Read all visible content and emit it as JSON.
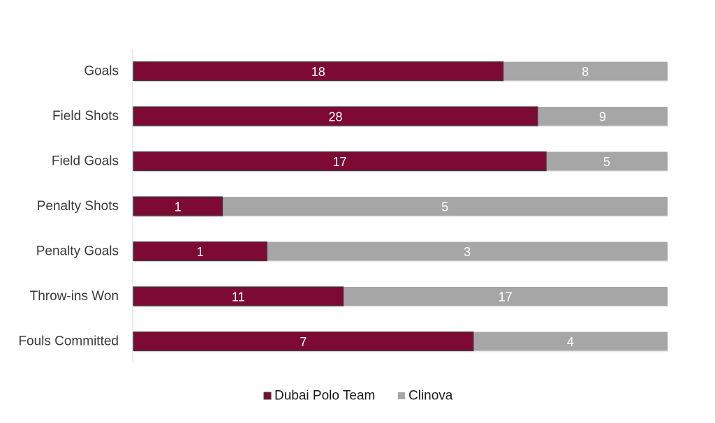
{
  "chart_data": {
    "type": "bar",
    "orientation": "horizontal",
    "stacking": "percent",
    "categories": [
      "Goals",
      "Field Shots",
      "Field Goals",
      "Penalty Shots",
      "Penalty Goals",
      "Throw-ins Won",
      "Fouls Committed"
    ],
    "series": [
      {
        "name": "Dubai Polo Team",
        "values": [
          18,
          28,
          17,
          1,
          1,
          11,
          7
        ],
        "color": "#7d0a33"
      },
      {
        "name": "Clinova",
        "values": [
          8,
          9,
          5,
          5,
          3,
          17,
          4
        ],
        "color": "#a6a6a6"
      }
    ],
    "data_labels": true,
    "grid": false,
    "legend": "bottom",
    "title": "",
    "xlabel": "",
    "ylabel": ""
  }
}
